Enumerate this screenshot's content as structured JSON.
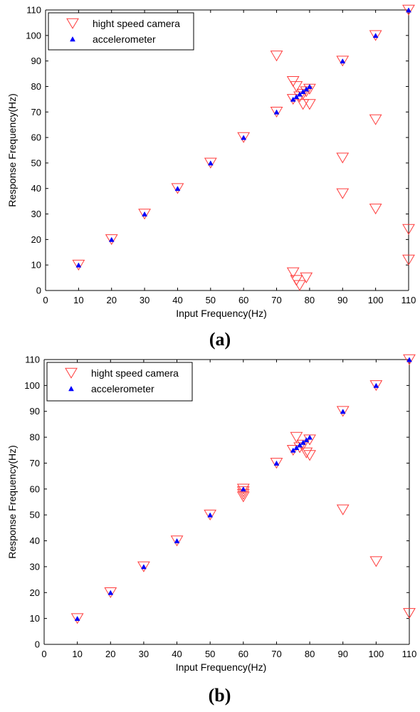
{
  "chart_data": [
    {
      "type": "scatter",
      "panel_label": "(a)",
      "xlabel": "Input Frequency(Hz)",
      "ylabel": "Response Frequency(Hz)",
      "xlim": [
        0,
        110
      ],
      "ylim": [
        0,
        110
      ],
      "xticks": [
        "0",
        "10",
        "20",
        "30",
        "40",
        "50",
        "60",
        "70",
        "80",
        "90",
        "100",
        "110"
      ],
      "yticks": [
        "0",
        "10",
        "20",
        "30",
        "40",
        "50",
        "60",
        "70",
        "80",
        "90",
        "100",
        "110"
      ],
      "grid": false,
      "legend_position": "top-left",
      "series": [
        {
          "name": "hight speed camera",
          "marker": "triangle-down",
          "color": "#ff3b3b",
          "points": [
            [
              10,
              10
            ],
            [
              20,
              20
            ],
            [
              30,
              30
            ],
            [
              40,
              40
            ],
            [
              50,
              50
            ],
            [
              60,
              60
            ],
            [
              70,
              70
            ],
            [
              70,
              92
            ],
            [
              75,
              75
            ],
            [
              75,
              82
            ],
            [
              75,
              7
            ],
            [
              76,
              4
            ],
            [
              76,
              80
            ],
            [
              77,
              76
            ],
            [
              77,
              2
            ],
            [
              78,
              77
            ],
            [
              78,
              73
            ],
            [
              79,
              78
            ],
            [
              79,
              5
            ],
            [
              80,
              79
            ],
            [
              80,
              73
            ],
            [
              90,
              90
            ],
            [
              90,
              52
            ],
            [
              90,
              38
            ],
            [
              100,
              100
            ],
            [
              100,
              67
            ],
            [
              100,
              32
            ],
            [
              110,
              110
            ],
            [
              110,
              24
            ],
            [
              110,
              12
            ]
          ]
        },
        {
          "name": "accelerometer",
          "marker": "triangle-up",
          "color": "#0000ff",
          "points": [
            [
              10,
              10
            ],
            [
              20,
              20
            ],
            [
              30,
              30
            ],
            [
              40,
              40
            ],
            [
              50,
              50
            ],
            [
              60,
              60
            ],
            [
              70,
              70
            ],
            [
              75,
              75
            ],
            [
              76,
              76
            ],
            [
              77,
              77
            ],
            [
              78,
              78
            ],
            [
              79,
              79
            ],
            [
              80,
              80
            ],
            [
              90,
              90
            ],
            [
              100,
              100
            ],
            [
              110,
              110
            ]
          ]
        }
      ]
    },
    {
      "type": "scatter",
      "panel_label": "(b)",
      "xlabel": "Input Frequency(Hz)",
      "ylabel": "Response Frequency(Hz)",
      "xlim": [
        0,
        110
      ],
      "ylim": [
        0,
        110
      ],
      "xticks": [
        "0",
        "10",
        "20",
        "30",
        "40",
        "50",
        "60",
        "70",
        "80",
        "90",
        "100",
        "110"
      ],
      "yticks": [
        "0",
        "10",
        "20",
        "30",
        "40",
        "50",
        "60",
        "70",
        "80",
        "90",
        "100",
        "110"
      ],
      "grid": false,
      "legend_position": "top-left",
      "series": [
        {
          "name": "hight speed camera",
          "marker": "triangle-down",
          "color": "#ff3b3b",
          "points": [
            [
              10,
              10
            ],
            [
              20,
              20
            ],
            [
              30,
              30
            ],
            [
              40,
              40
            ],
            [
              50,
              50
            ],
            [
              60,
              60
            ],
            [
              60,
              59
            ],
            [
              60,
              58
            ],
            [
              60,
              57
            ],
            [
              70,
              70
            ],
            [
              75,
              75
            ],
            [
              76,
              80
            ],
            [
              77,
              76
            ],
            [
              78,
              77
            ],
            [
              79,
              74
            ],
            [
              80,
              79
            ],
            [
              80,
              73
            ],
            [
              90,
              90
            ],
            [
              90,
              52
            ],
            [
              100,
              100
            ],
            [
              100,
              32
            ],
            [
              110,
              110
            ],
            [
              110,
              12
            ]
          ]
        },
        {
          "name": "accelerometer",
          "marker": "triangle-up",
          "color": "#0000ff",
          "points": [
            [
              10,
              10
            ],
            [
              20,
              20
            ],
            [
              30,
              30
            ],
            [
              40,
              40
            ],
            [
              50,
              50
            ],
            [
              60,
              60
            ],
            [
              70,
              70
            ],
            [
              75,
              75
            ],
            [
              76,
              76
            ],
            [
              77,
              77
            ],
            [
              78,
              78
            ],
            [
              79,
              79
            ],
            [
              80,
              80
            ],
            [
              90,
              90
            ],
            [
              100,
              100
            ],
            [
              110,
              110
            ]
          ]
        }
      ]
    }
  ]
}
